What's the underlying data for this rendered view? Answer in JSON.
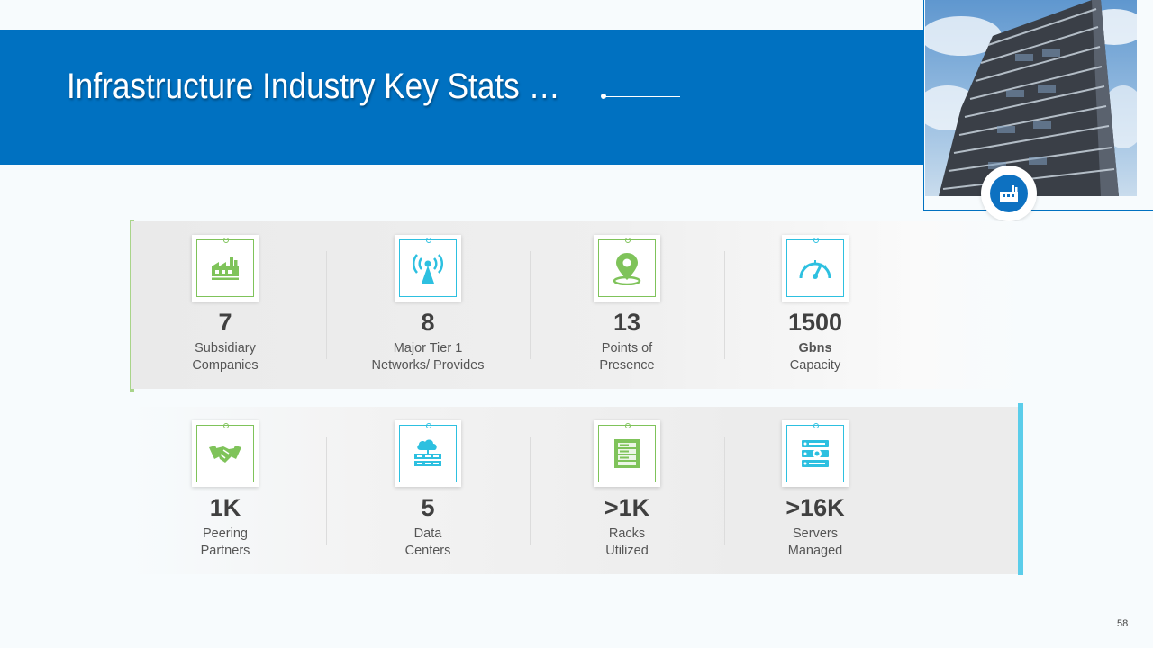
{
  "title": "Infrastructure Industry Key Stats …",
  "colors": {
    "banner": "#0071c1",
    "green": "#7fc35a",
    "teal": "#2dc0e0"
  },
  "stats_top": [
    {
      "value": "7",
      "line1": "Subsidiary",
      "line2": "Companies",
      "icon": "factory-icon"
    },
    {
      "value": "8",
      "line1": "Major Tier 1",
      "line2": "Networks/ Provides",
      "icon": "antenna-icon"
    },
    {
      "value": "13",
      "line1": "Points of",
      "line2": "Presence",
      "icon": "location-pin-icon"
    },
    {
      "value": "1500",
      "line1": "Gbns",
      "line2": "Capacity",
      "icon": "speedometer-icon"
    }
  ],
  "stats_bottom": [
    {
      "value": "1K",
      "line1": "Peering",
      "line2": "Partners",
      "icon": "handshake-icon"
    },
    {
      "value": "5",
      "line1": "Data",
      "line2": "Centers",
      "icon": "cloud-server-icon"
    },
    {
      "value": ">1K",
      "line1": "Racks",
      "line2": "Utilized",
      "icon": "server-rack-icon"
    },
    {
      "value": ">16K",
      "line1": "Servers",
      "line2": "Managed",
      "icon": "server-gear-icon"
    }
  ],
  "page_number": "58"
}
